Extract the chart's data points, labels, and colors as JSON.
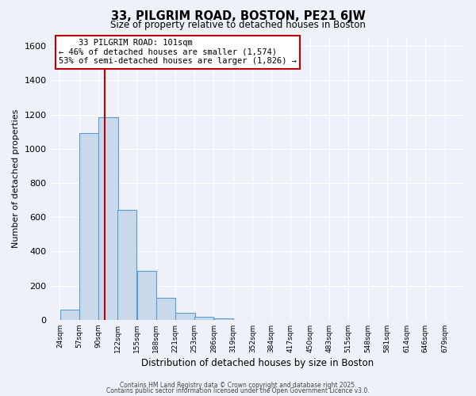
{
  "title": "33, PILGRIM ROAD, BOSTON, PE21 6JW",
  "subtitle": "Size of property relative to detached houses in Boston",
  "xlabel": "Distribution of detached houses by size in Boston",
  "ylabel": "Number of detached properties",
  "bar_values": [
    60,
    1090,
    1185,
    645,
    285,
    130,
    42,
    18,
    10,
    0,
    0,
    0,
    0,
    0,
    0,
    0,
    0,
    0
  ],
  "bin_left_edges": [
    24,
    57,
    90,
    122,
    155,
    188,
    221,
    253,
    286,
    319,
    352,
    384,
    417,
    450,
    483,
    515,
    548,
    581
  ],
  "bin_width": 33,
  "tick_labels": [
    "24sqm",
    "57sqm",
    "90sqm",
    "122sqm",
    "155sqm",
    "188sqm",
    "221sqm",
    "253sqm",
    "286sqm",
    "319sqm",
    "352sqm",
    "384sqm",
    "417sqm",
    "450sqm",
    "483sqm",
    "515sqm",
    "548sqm",
    "581sqm",
    "614sqm",
    "646sqm",
    "679sqm"
  ],
  "tick_positions": [
    24,
    57,
    90,
    122,
    155,
    188,
    221,
    253,
    286,
    319,
    352,
    384,
    417,
    450,
    483,
    515,
    548,
    581,
    614,
    646,
    679
  ],
  "bar_color": "#c8daea",
  "bar_edge_color": "#5b9bd5",
  "ylim": [
    0,
    1650
  ],
  "yticks": [
    0,
    200,
    400,
    600,
    800,
    1000,
    1200,
    1400,
    1600
  ],
  "xlim_left": 8,
  "xlim_right": 712,
  "vline_x": 101,
  "vline_color": "#c00000",
  "annotation_line1": "    33 PILGRIM ROAD: 101sqm",
  "annotation_line2": "← 46% of detached houses are smaller (1,574)",
  "annotation_line3": "53% of semi-detached houses are larger (1,826) →",
  "annotation_box_color": "#c00000",
  "bg_color": "#eef2f8",
  "grid_color": "#ffffff",
  "footnote1": "Contains HM Land Registry data © Crown copyright and database right 2025.",
  "footnote2": "Contains public sector information licensed under the Open Government Licence v3.0."
}
